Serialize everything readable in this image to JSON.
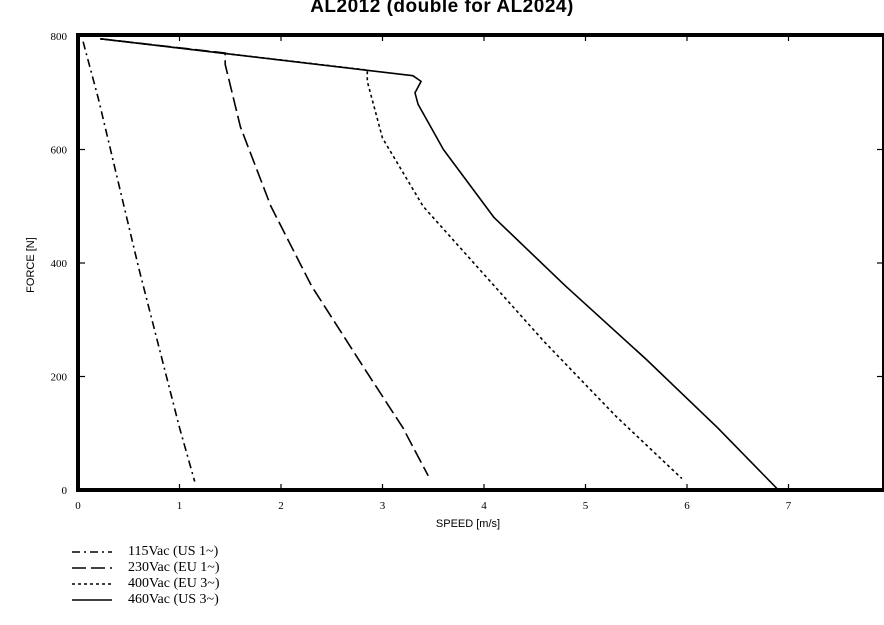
{
  "chart_data": {
    "type": "line",
    "title": "AL2012 (double for AL2024)",
    "xlabel": "SPEED [m/s]",
    "ylabel": "FORCE [N]",
    "xlim": [
      0,
      8
    ],
    "ylim": [
      0,
      800
    ],
    "xticks": [
      "0",
      "1",
      "2",
      "3",
      "4",
      "5",
      "6",
      "7"
    ],
    "yticks": [
      "0",
      "200",
      "400",
      "600",
      "800"
    ],
    "grid": false,
    "legend_position": "bottom-left",
    "series": [
      {
        "name": "115Vac (US 1~)",
        "style": "dash-dot",
        "x": [
          0.05,
          0.2,
          0.4,
          0.6,
          0.8,
          1.0,
          1.15
        ],
        "y": [
          790,
          690,
          540,
          390,
          250,
          110,
          15
        ]
      },
      {
        "name": "230Vac (EU 1~)",
        "style": "long-dash",
        "x": [
          0.22,
          1.45,
          1.45,
          1.6,
          1.9,
          2.3,
          2.8,
          3.2,
          3.45
        ],
        "y": [
          795,
          770,
          750,
          640,
          500,
          360,
          220,
          110,
          25
        ]
      },
      {
        "name": "400Vac (EU 3~)",
        "style": "short-dash",
        "x": [
          0.22,
          2.85,
          2.85,
          3.0,
          3.4,
          4.0,
          4.6,
          5.3,
          5.95
        ],
        "y": [
          795,
          740,
          720,
          620,
          500,
          380,
          260,
          130,
          20
        ]
      },
      {
        "name": "460Vac (US 3~)",
        "style": "solid",
        "x": [
          0.22,
          3.3,
          3.38,
          3.32,
          3.35,
          3.6,
          4.1,
          4.8,
          5.6,
          6.3,
          6.9
        ],
        "y": [
          795,
          730,
          720,
          700,
          680,
          600,
          480,
          360,
          230,
          110,
          0
        ]
      }
    ]
  },
  "legend_entries": [
    "115Vac (US 1~)",
    "230Vac (EU 1~)",
    "400Vac (EU 3~)",
    "460Vac (US 3~)"
  ]
}
